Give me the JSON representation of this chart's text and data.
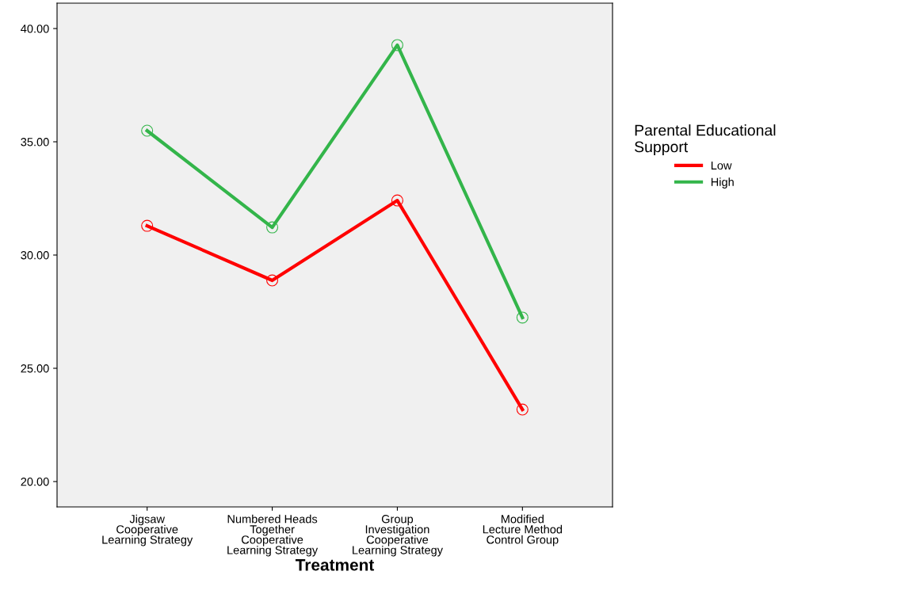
{
  "chart_data": {
    "type": "line",
    "categories": [
      "Jigsaw\nCooperative\nLearning Strategy",
      "Numbered Heads\nTogether\nCooperative\nLearning Strategy",
      "Group\nInvestigation\nCooperative\nLearning Strategy",
      "Modified\nLecture Method\nControl Group"
    ],
    "series": [
      {
        "name": "Low",
        "color": "#ff0000",
        "values": [
          31.29,
          28.88,
          32.41,
          23.18
        ]
      },
      {
        "name": "High",
        "color": "#33b54a",
        "values": [
          35.49,
          31.22,
          39.27,
          27.24
        ]
      }
    ],
    "xlabel": "Treatment",
    "legend_title": "Parental Educational\nSupport",
    "legend": "right",
    "ylim": [
      18.88,
      41.12
    ],
    "yticks": [
      {
        "value": 20,
        "label": "20.00"
      },
      {
        "value": 25,
        "label": "25.00"
      },
      {
        "value": 30,
        "label": "30.00"
      },
      {
        "value": 35,
        "label": "35.00"
      },
      {
        "value": 40,
        "label": "40.00"
      }
    ],
    "marker": "circle",
    "grid": false
  }
}
